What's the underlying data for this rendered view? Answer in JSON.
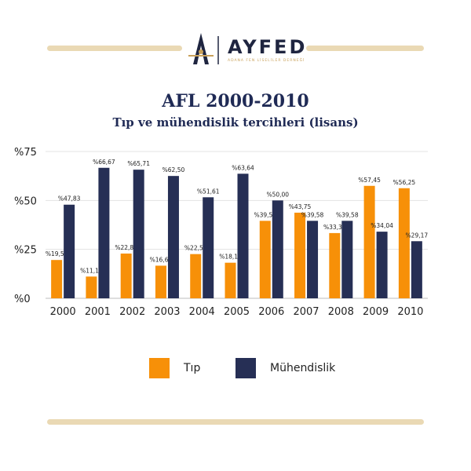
{
  "logo": {
    "name": "AYFED",
    "tagline": "ADANA FEN LİSELİLER DERNEĞİ"
  },
  "chart_data": {
    "type": "bar",
    "title": "AFL 2000-2010",
    "subtitle": "Tıp ve mühendislik tercihleri (lisans)",
    "categories": [
      "2000",
      "2001",
      "2002",
      "2003",
      "2004",
      "2005",
      "2006",
      "2007",
      "2008",
      "2009",
      "2010"
    ],
    "series": [
      {
        "name": "Tıp",
        "color": "#f79008",
        "values": [
          19.57,
          11.11,
          22.86,
          16.67,
          22.59,
          18.18,
          39.58,
          43.75,
          33.33,
          57.45,
          56.25
        ],
        "labels": [
          "%19,57",
          "%11,11",
          "%22,86",
          "%16,67",
          "%22,59",
          "%18,18",
          "%39,58",
          "%43,75",
          "%33,33",
          "%57,45",
          "%56,25"
        ]
      },
      {
        "name": "Mühendislik",
        "color": "#262f55",
        "values": [
          47.83,
          66.67,
          65.71,
          62.5,
          51.61,
          63.64,
          50.0,
          39.58,
          39.58,
          34.04,
          29.17
        ],
        "labels": [
          "%47,83",
          "%66,67",
          "%65,71",
          "%62,50",
          "%51,61",
          "%63,64",
          "%50,00",
          "%39,58",
          "%39,58",
          "%34,04",
          "%29,17"
        ]
      }
    ],
    "yticks": [
      0,
      25,
      50,
      75
    ],
    "ytick_labels": [
      "%0",
      "%25",
      "%50",
      "%75"
    ],
    "ylim": [
      0,
      75
    ],
    "grid": true,
    "legend": "bottom"
  }
}
